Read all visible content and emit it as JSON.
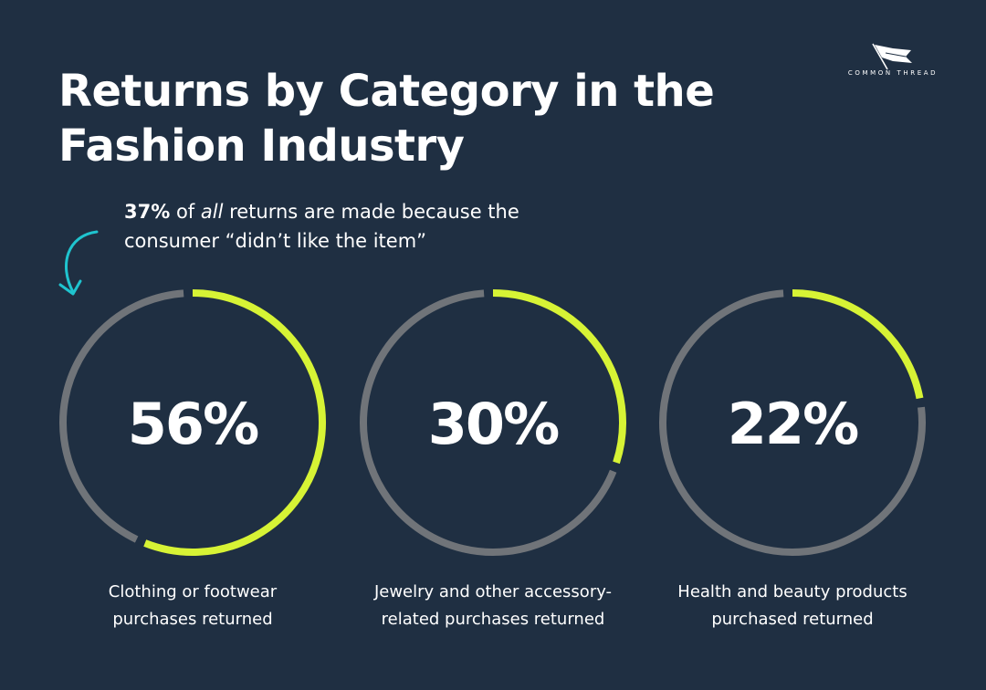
{
  "title_lines": [
    "Returns by Category in the",
    "Fashion Industry"
  ],
  "brand": {
    "name": "COMMON THREAD",
    "icon": "flag-icon"
  },
  "callout": {
    "pct": "37%",
    "pre": " of ",
    "emph": "all",
    "post": " returns are made because the",
    "line2": "consumer “didn’t like the item”",
    "icon": "curved-arrow-icon"
  },
  "colors": {
    "background": "#1f2f42",
    "track": "#707479",
    "accent": "#d7f335",
    "arrow": "#1fc4cf",
    "text": "#ffffff"
  },
  "chart_data": {
    "type": "donut",
    "categories": [
      "Clothing or footwear purchases returned",
      "Jewelry and other accessory-related purchases returned",
      "Health and beauty products purchased returned"
    ],
    "values": [
      56,
      30,
      22
    ],
    "unit": "%",
    "items": [
      {
        "value": 56,
        "display": "56%",
        "label_lines": [
          "Clothing or footwear",
          "purchases returned"
        ]
      },
      {
        "value": 30,
        "display": "30%",
        "label_lines": [
          "Jewelry and other accessory-",
          "related purchases returned"
        ]
      },
      {
        "value": 22,
        "display": "22%",
        "label_lines": [
          "Health and beauty products",
          "purchased returned"
        ]
      }
    ]
  }
}
